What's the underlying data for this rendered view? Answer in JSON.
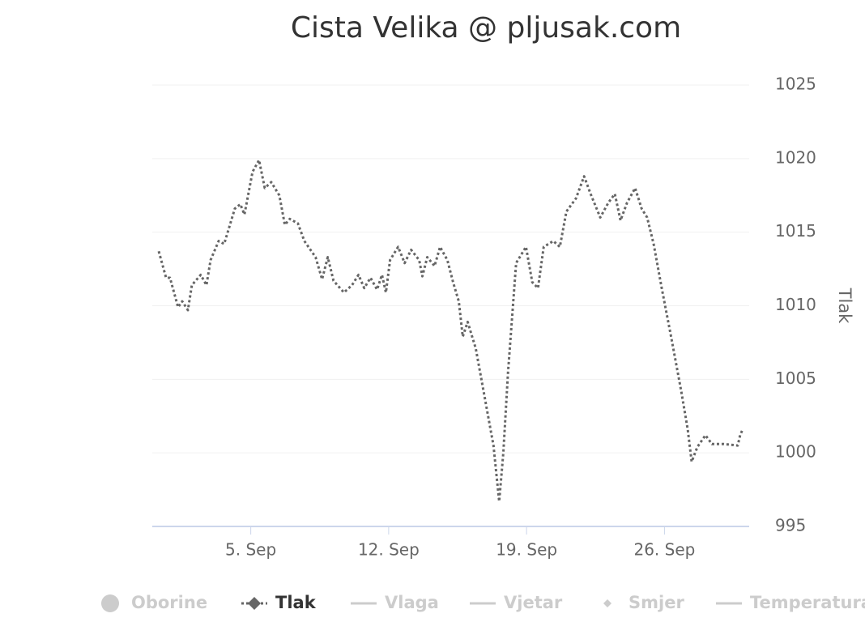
{
  "chart_data": {
    "type": "line",
    "title": "Cista Velika @ pljusak.com",
    "y_axis_label": "Tlak",
    "y_axis_side": "right",
    "grid": true,
    "ylim": [
      995,
      1025
    ],
    "yticks": [
      995,
      1000,
      1005,
      1010,
      1015,
      1020,
      1025
    ],
    "xlim": [
      0,
      30.3
    ],
    "xticks": [
      {
        "value": 5,
        "label": "5. Sep"
      },
      {
        "value": 12,
        "label": "12. Sep"
      },
      {
        "value": 19,
        "label": "19. Sep"
      },
      {
        "value": 26,
        "label": "26. Sep"
      }
    ],
    "x": [
      0.33,
      0.7,
      0.9,
      1.31,
      1.52,
      1.81,
      2.01,
      2.46,
      2.75,
      2.96,
      3.37,
      3.65,
      4.19,
      4.47,
      4.68,
      5.09,
      5.42,
      5.71,
      6.04,
      6.45,
      6.73,
      6.98,
      7.39,
      7.72,
      8.29,
      8.62,
      8.91,
      9.2,
      9.73,
      10.14,
      10.47,
      10.76,
      11.08,
      11.41,
      11.66,
      11.86,
      12.07,
      12.48,
      12.81,
      13.14,
      13.55,
      13.71,
      13.96,
      14.33,
      14.61,
      14.98,
      15.27,
      15.56,
      15.76,
      16.01,
      16.42,
      16.83,
      17.32,
      17.61,
      17.82,
      18.06,
      18.47,
      18.97,
      19.29,
      19.58,
      19.87,
      20.36,
      20.69,
      21.02,
      21.51,
      21.92,
      22.25,
      22.74,
      23.15,
      23.48,
      23.77,
      24.1,
      24.51,
      24.84,
      25.12,
      25.45,
      25.86,
      26.35,
      26.85,
      27.18,
      27.38,
      27.67,
      28.08,
      28.41,
      29.02,
      29.72,
      29.84,
      29.97
    ],
    "series": [
      {
        "name": "Oborine",
        "color": "#cccccc",
        "symbol": "circle",
        "visible": false
      },
      {
        "name": "Tlak",
        "color": "#666666",
        "symbol": "diamond",
        "visible": true,
        "dash_style": "dotted",
        "values": [
          1013.7,
          1011.9,
          1011.9,
          1009.9,
          1010.3,
          1009.7,
          1011.4,
          1012.1,
          1011.4,
          1013.1,
          1014.4,
          1014.2,
          1016.6,
          1016.9,
          1016.2,
          1019.1,
          1019.9,
          1018.0,
          1018.4,
          1017.5,
          1015.5,
          1015.9,
          1015.6,
          1014.4,
          1013.3,
          1011.8,
          1013.3,
          1011.7,
          1010.9,
          1011.4,
          1012.1,
          1011.2,
          1011.9,
          1011.1,
          1012.1,
          1010.9,
          1013.1,
          1014.0,
          1012.9,
          1013.8,
          1013.1,
          1012.0,
          1013.3,
          1012.7,
          1014.0,
          1013.1,
          1011.6,
          1010.3,
          1007.9,
          1008.9,
          1007.1,
          1004.1,
          1000.5,
          996.7,
          1000.0,
          1005.5,
          1012.9,
          1014.0,
          1011.6,
          1011.2,
          1014.0,
          1014.4,
          1014.0,
          1016.4,
          1017.3,
          1018.8,
          1017.6,
          1016.0,
          1017.0,
          1017.6,
          1015.8,
          1017.0,
          1018.0,
          1016.6,
          1016.0,
          1014.2,
          1011.2,
          1007.8,
          1004.2,
          1001.6,
          999.4,
          1000.4,
          1001.2,
          1000.6,
          1000.6,
          1000.5,
          1001.2,
          1001.6
        ]
      },
      {
        "name": "Vlaga",
        "color": "#cccccc",
        "symbol": "line",
        "visible": false
      },
      {
        "name": "Vjetar",
        "color": "#cccccc",
        "symbol": "line",
        "visible": false
      },
      {
        "name": "Smjer",
        "color": "#cccccc",
        "symbol": "small-diamond",
        "visible": false
      },
      {
        "name": "Temperatura",
        "color": "#cccccc",
        "symbol": "line",
        "visible": false
      }
    ]
  }
}
